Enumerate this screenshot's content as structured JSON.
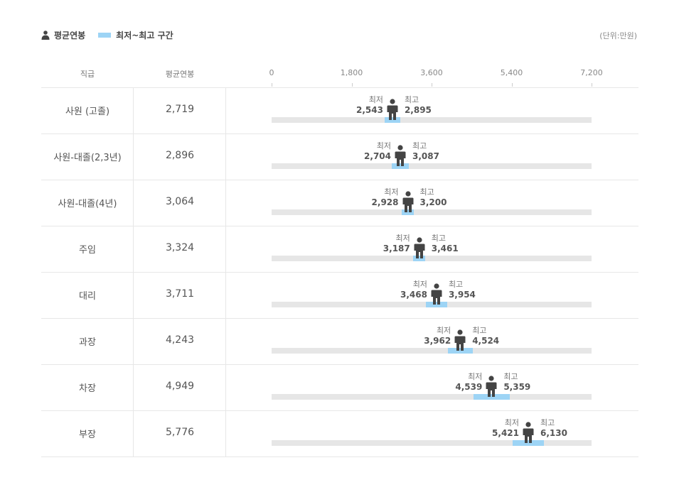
{
  "legend": {
    "avg_label": "평균연봉",
    "range_label": "최저~최고 구간"
  },
  "unit": "(단위:만원)",
  "headers": {
    "rank": "직급",
    "avg": "평균연봉"
  },
  "labels": {
    "min": "최저",
    "max": "최고"
  },
  "colors": {
    "range": "#9dd4f5",
    "track": "#e6e6e6",
    "person": "#444444"
  },
  "chart_data": {
    "type": "range-dot",
    "xlim": [
      0,
      7200
    ],
    "ticks": [
      "0",
      "1,800",
      "3,600",
      "5,400",
      "7,200"
    ],
    "categories": [
      "사원 (고졸)",
      "사원-대졸(2,3년)",
      "사원-대졸(4년)",
      "주임",
      "대리",
      "과장",
      "차장",
      "부장"
    ],
    "avg_display": [
      "2,719",
      "2,896",
      "3,064",
      "3,324",
      "3,711",
      "4,243",
      "4,949",
      "5,776"
    ],
    "avg": [
      2719,
      2896,
      3064,
      3324,
      3711,
      4243,
      4949,
      5776
    ],
    "min_display": [
      "2,543",
      "2,704",
      "2,928",
      "3,187",
      "3,468",
      "3,962",
      "4,539",
      "5,421"
    ],
    "min": [
      2543,
      2704,
      2928,
      3187,
      3468,
      3962,
      4539,
      5421
    ],
    "max_display": [
      "2,895",
      "3,087",
      "3,200",
      "3,461",
      "3,954",
      "4,524",
      "5,359",
      "6,130"
    ],
    "max": [
      2895,
      3087,
      3200,
      3461,
      3954,
      4524,
      5359,
      6130
    ]
  }
}
